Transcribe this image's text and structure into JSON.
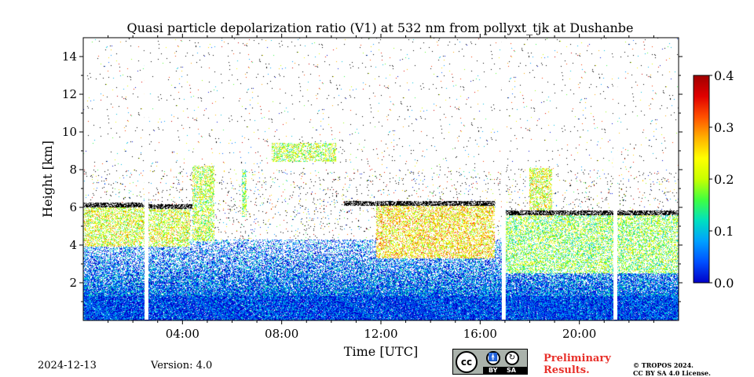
{
  "chart_data": {
    "type": "heatmap",
    "title": "Quasi particle depolarization ratio (V1) at 532 nm from pollyxt_tjk at Dushanbe",
    "xlabel": "Time [UTC]",
    "ylabel": "Height [km]",
    "x_range_hours": [
      0,
      24
    ],
    "y_range_km": [
      0,
      15
    ],
    "x_ticks": [
      {
        "value": 4,
        "label": "04:00"
      },
      {
        "value": 8,
        "label": "08:00"
      },
      {
        "value": 12,
        "label": "12:00"
      },
      {
        "value": 16,
        "label": "16:00"
      },
      {
        "value": 20,
        "label": "20:00"
      }
    ],
    "y_ticks": [
      {
        "value": 2,
        "label": "2"
      },
      {
        "value": 4,
        "label": "4"
      },
      {
        "value": 6,
        "label": "6"
      },
      {
        "value": 8,
        "label": "8"
      },
      {
        "value": 10,
        "label": "10"
      },
      {
        "value": 12,
        "label": "12"
      },
      {
        "value": 14,
        "label": "14"
      }
    ],
    "colorbar": {
      "min": 0.0,
      "max": 0.4,
      "ticks": [
        {
          "value": 0.0,
          "label": "0.0"
        },
        {
          "value": 0.1,
          "label": "0.1"
        },
        {
          "value": 0.2,
          "label": "0.2"
        },
        {
          "value": 0.3,
          "label": "0.3"
        },
        {
          "value": 0.4,
          "label": "0.4"
        }
      ],
      "colormap": [
        "#0000c8",
        "#0050ff",
        "#00a0ff",
        "#00e0c0",
        "#40ff40",
        "#c8ff00",
        "#ffff00",
        "#ffb000",
        "#ff5000",
        "#e00000",
        "#a00000"
      ]
    },
    "data_gaps_hours": [
      2.55,
      16.95,
      21.45
    ],
    "cloud_top_km": [
      {
        "start": 0.0,
        "end": 2.5,
        "height": 6.0
      },
      {
        "start": 2.6,
        "end": 4.4,
        "height": 5.9
      },
      {
        "start": 10.5,
        "end": 16.6,
        "height": 6.1
      },
      {
        "start": 17.0,
        "end": 21.4,
        "height": 5.6
      },
      {
        "start": 21.5,
        "end": 24.0,
        "height": 5.6
      }
    ],
    "features": [
      {
        "name": "boundary_layer",
        "t_start": 0,
        "t_end": 24,
        "h_bottom": 0.0,
        "h_top": 1.3,
        "value": 0.03
      },
      {
        "name": "residual_layer",
        "t_start": 0,
        "t_end": 24,
        "h_bottom": 1.3,
        "h_top": 4.3,
        "value": 0.05
      },
      {
        "name": "morning_dust_layer",
        "t_start": 0,
        "t_end": 4.3,
        "h_bottom": 3.9,
        "h_top": 6.0,
        "value": 0.22
      },
      {
        "name": "plume_05",
        "t_start": 4.4,
        "t_end": 5.3,
        "h_bottom": 4.2,
        "h_top": 8.2,
        "value": 0.2
      },
      {
        "name": "plume_06",
        "t_start": 6.4,
        "t_end": 6.6,
        "h_bottom": 5.5,
        "h_top": 8.0,
        "value": 0.18
      },
      {
        "name": "upper_layer_09",
        "t_start": 7.6,
        "t_end": 10.2,
        "h_bottom": 8.4,
        "h_top": 9.4,
        "value": 0.2
      },
      {
        "name": "afternoon_layer",
        "t_start": 11.8,
        "t_end": 16.6,
        "h_bottom": 3.3,
        "h_top": 6.2,
        "value": 0.25
      },
      {
        "name": "evening_layer",
        "t_start": 17.0,
        "t_end": 24.0,
        "h_bottom": 2.5,
        "h_top": 5.8,
        "value": 0.18
      },
      {
        "name": "streak_18",
        "t_start": 18.0,
        "t_end": 18.9,
        "h_bottom": 5.5,
        "h_top": 8.1,
        "value": 0.22
      }
    ]
  },
  "footer": {
    "date": "2024-12-13",
    "version": "Version: 4.0",
    "preliminary": "Preliminary Results.",
    "tropos_line1": "© TROPOS 2024.",
    "tropos_line2": "CC BY SA 4.0 License.",
    "cc_label": "cc",
    "by_label": "BY",
    "sa_label": "SA"
  }
}
